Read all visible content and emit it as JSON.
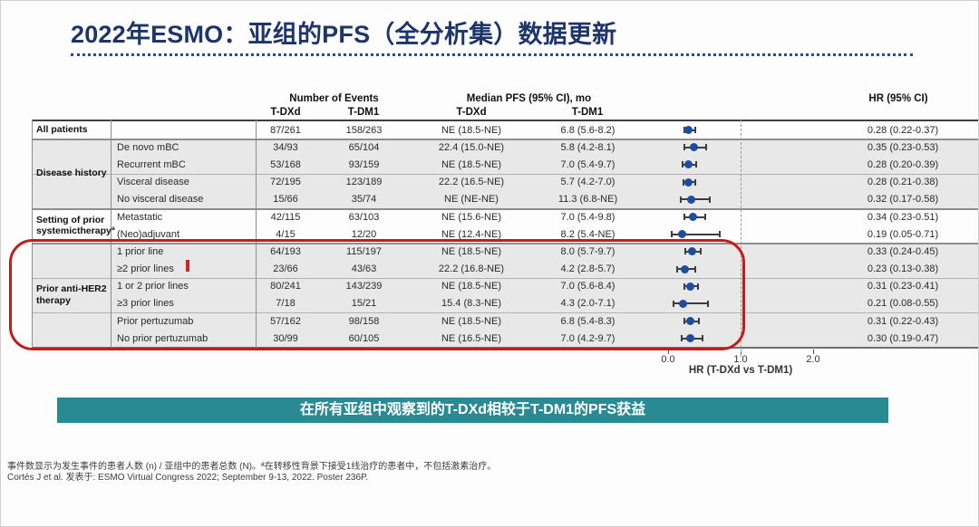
{
  "title": "2022年ESMO：亚组的PFS（全分析集）数据更新",
  "colors": {
    "title_navy": "#1e356b",
    "banner_teal": "#2a8a93",
    "highlight_red": "#c21d1d",
    "forest_dot_blue": "#1c4da0",
    "row_shade_gray": "#e8e8e8"
  },
  "table": {
    "headers": {
      "events": "Number of Events",
      "median": "Median PFS (95% CI), mo",
      "arm1": "T-DXd",
      "arm2": "T-DM1",
      "hr": "HR (95% CI)"
    },
    "groups": [
      {
        "label": "All patients",
        "shade": false,
        "rows": [
          {
            "subgroup": "",
            "events_tdxd": "87/261",
            "events_tdm1": "158/263",
            "median_tdxd": "NE (18.5-NE)",
            "median_tdm1": "6.8 (5.6-8.2)",
            "hr_text": "0.28 (0.22-0.37)",
            "hr": 0.28,
            "ci_low": 0.22,
            "ci_high": 0.37,
            "divider": false
          }
        ]
      },
      {
        "label": "Disease history",
        "shade": true,
        "rows": [
          {
            "subgroup": "De novo mBC",
            "events_tdxd": "34/93",
            "events_tdm1": "65/104",
            "median_tdxd": "22.4 (15.0-NE)",
            "median_tdm1": "5.8 (4.2-8.1)",
            "hr_text": "0.35 (0.23-0.53)",
            "hr": 0.35,
            "ci_low": 0.23,
            "ci_high": 0.53,
            "divider": false
          },
          {
            "subgroup": "Recurrent mBC",
            "events_tdxd": "53/168",
            "events_tdm1": "93/159",
            "median_tdxd": "NE (18.5-NE)",
            "median_tdm1": "7.0 (5.4-9.7)",
            "hr_text": "0.28 (0.20-0.39)",
            "hr": 0.28,
            "ci_low": 0.2,
            "ci_high": 0.39,
            "divider": false
          },
          {
            "subgroup": "Visceral disease",
            "events_tdxd": "72/195",
            "events_tdm1": "123/189",
            "median_tdxd": "22.2 (16.5-NE)",
            "median_tdm1": "5.7 (4.2-7.0)",
            "hr_text": "0.28 (0.21-0.38)",
            "hr": 0.28,
            "ci_low": 0.21,
            "ci_high": 0.38,
            "divider": true
          },
          {
            "subgroup": "No visceral disease",
            "events_tdxd": "15/66",
            "events_tdm1": "35/74",
            "median_tdxd": "NE (NE-NE)",
            "median_tdm1": "11.3 (6.8-NE)",
            "hr_text": "0.32 (0.17-0.58)",
            "hr": 0.32,
            "ci_low": 0.17,
            "ci_high": 0.58,
            "divider": false
          }
        ]
      },
      {
        "label": "Setting of prior systemictherapyª",
        "shade": false,
        "rows": [
          {
            "subgroup": "Metastatic",
            "events_tdxd": "42/115",
            "events_tdm1": "63/103",
            "median_tdxd": "NE (15.6-NE)",
            "median_tdm1": "7.0 (5.4-9.8)",
            "hr_text": "0.34 (0.23-0.51)",
            "hr": 0.34,
            "ci_low": 0.23,
            "ci_high": 0.51,
            "divider": false
          },
          {
            "subgroup": "(Neo)adjuvant",
            "events_tdxd": "4/15",
            "events_tdm1": "12/20",
            "median_tdxd": "NE (12.4-NE)",
            "median_tdm1": "8.2 (5.4-NE)",
            "hr_text": "0.19 (0.05-0.71)",
            "hr": 0.19,
            "ci_low": 0.05,
            "ci_high": 0.71,
            "divider": false
          }
        ]
      },
      {
        "label": "Prior anti-HER2 therapy",
        "shade": true,
        "rows": [
          {
            "subgroup": "1 prior line",
            "events_tdxd": "64/193",
            "events_tdm1": "115/197",
            "median_tdxd": "NE (18.5-NE)",
            "median_tdm1": "8.0 (5.7-9.7)",
            "hr_text": "0.33 (0.24-0.45)",
            "hr": 0.33,
            "ci_low": 0.24,
            "ci_high": 0.45,
            "divider": false
          },
          {
            "subgroup": "≥2 prior lines",
            "events_tdxd": "23/66",
            "events_tdm1": "43/63",
            "median_tdxd": "22.2 (16.8-NE)",
            "median_tdm1": "4.2 (2.8-5.7)",
            "hr_text": "0.23 (0.13-0.38)",
            "hr": 0.23,
            "ci_low": 0.13,
            "ci_high": 0.38,
            "divider": false
          },
          {
            "subgroup": "1 or 2 prior lines",
            "events_tdxd": "80/241",
            "events_tdm1": "143/239",
            "median_tdxd": "NE (18.5-NE)",
            "median_tdm1": "7.0 (5.6-8.4)",
            "hr_text": "0.31 (0.23-0.41)",
            "hr": 0.31,
            "ci_low": 0.23,
            "ci_high": 0.41,
            "divider": true
          },
          {
            "subgroup": "≥3 prior lines",
            "events_tdxd": "7/18",
            "events_tdm1": "15/21",
            "median_tdxd": "15.4 (8.3-NE)",
            "median_tdm1": "4.3 (2.0-7.1)",
            "hr_text": "0.21 (0.08-0.55)",
            "hr": 0.21,
            "ci_low": 0.08,
            "ci_high": 0.55,
            "divider": false
          },
          {
            "subgroup": "Prior pertuzumab",
            "events_tdxd": "57/162",
            "events_tdm1": "98/158",
            "median_tdxd": "NE (18.5-NE)",
            "median_tdm1": "6.8 (5.4-8.3)",
            "hr_text": "0.31 (0.22-0.43)",
            "hr": 0.31,
            "ci_low": 0.22,
            "ci_high": 0.43,
            "divider": true
          },
          {
            "subgroup": "No prior pertuzumab",
            "events_tdxd": "30/99",
            "events_tdm1": "60/105",
            "median_tdxd": "NE (16.5-NE)",
            "median_tdm1": "7.0 (4.2-9.7)",
            "hr_text": "0.30 (0.19-0.47)",
            "hr": 0.3,
            "ci_low": 0.19,
            "ci_high": 0.47,
            "divider": false
          }
        ]
      }
    ]
  },
  "axis": {
    "ticks": [
      "0.0",
      "1.0",
      "2.0"
    ],
    "label": "HR (T-DXd vs T-DM1)",
    "reference_line": 1.0
  },
  "banner": {
    "text": "在所有亚组中观察到的T-DXd相较于T-DM1的PFS获益"
  },
  "footnotes": {
    "line1": "事件数显示为发生事件的患者人数 (n) / 亚组中的患者总数 (N)。ª在转移性背景下接受1线治疗的患者中，不包括激素治疗。",
    "line2": "Cortés J et al. 发表于: ESMO Virtual Congress 2022; September 9-13, 2022. Poster 236P."
  },
  "chart_data": {
    "type": "scatter",
    "subtype": "forest-plot",
    "title": "2022年ESMO：亚组的PFS（全分析集）数据更新",
    "xlabel": "HR (T-DXd vs T-DM1)",
    "xlim": [
      0.0,
      2.0
    ],
    "xticks": [
      0.0,
      1.0,
      2.0
    ],
    "reference_line": 1.0,
    "categories": [
      "All patients",
      "De novo mBC",
      "Recurrent mBC",
      "Visceral disease",
      "No visceral disease",
      "Metastatic",
      "(Neo)adjuvant",
      "1 prior line",
      "≥2 prior lines",
      "1 or 2 prior lines",
      "≥3 prior lines",
      "Prior pertuzumab",
      "No prior pertuzumab"
    ],
    "series": [
      {
        "name": "HR",
        "values": [
          0.28,
          0.35,
          0.28,
          0.28,
          0.32,
          0.34,
          0.19,
          0.33,
          0.23,
          0.31,
          0.21,
          0.31,
          0.3
        ]
      },
      {
        "name": "CI low",
        "values": [
          0.22,
          0.23,
          0.2,
          0.21,
          0.17,
          0.23,
          0.05,
          0.24,
          0.13,
          0.23,
          0.08,
          0.22,
          0.19
        ]
      },
      {
        "name": "CI high",
        "values": [
          0.37,
          0.53,
          0.39,
          0.38,
          0.58,
          0.51,
          0.71,
          0.45,
          0.38,
          0.41,
          0.55,
          0.43,
          0.47
        ]
      }
    ]
  }
}
